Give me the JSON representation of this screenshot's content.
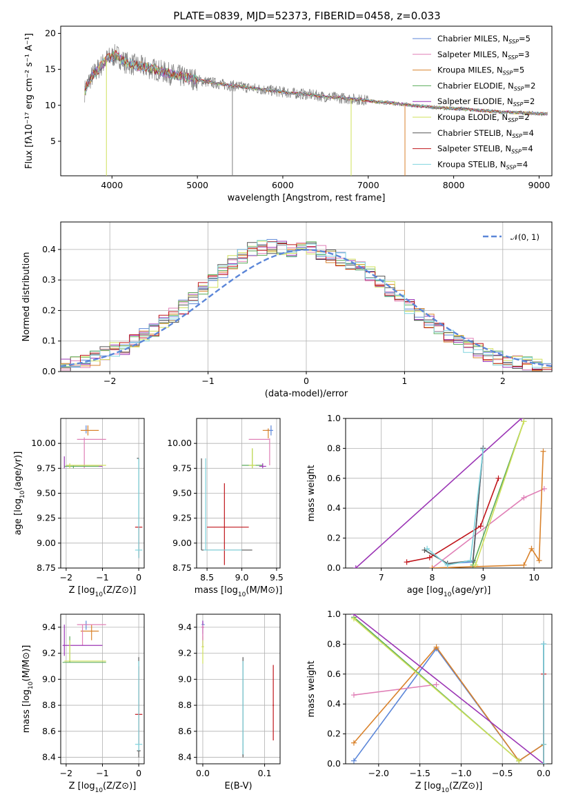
{
  "figure": {
    "title": "PLATE=0839, MJD=52373, FIBERID=0458, z=0.033"
  },
  "chart_data": [
    {
      "id": "spectrum",
      "type": "line",
      "xlabel": "wavelength [Angstrom, rest frame]",
      "ylabel": "Flux [fλ10⁻¹⁷ erg cm⁻² s⁻¹ A⁻¹]",
      "xlim": [
        3400,
        9150
      ],
      "ylim": [
        0.2,
        21
      ],
      "xticks": [
        4000,
        5000,
        6000,
        7000,
        8000,
        9000
      ],
      "yticks": [
        5,
        10,
        15,
        20
      ],
      "grid": false,
      "legend_position": "top-right",
      "series": [
        {
          "name": "Chabrier MILES, N_SSP=5",
          "color": "#5b86d8"
        },
        {
          "name": "Salpeter MILES, N_SSP=3",
          "color": "#e07fb6"
        },
        {
          "name": "Kroupa MILES, N_SSP=5",
          "color": "#d9822b"
        },
        {
          "name": "Chabrier ELODIE, N_SSP=2",
          "color": "#5aab5a"
        },
        {
          "name": "Salpeter ELODIE, N_SSP=2",
          "color": "#9b35b5"
        },
        {
          "name": "Kroupa ELODIE, N_SSP=2",
          "color": "#cfe05a"
        },
        {
          "name": "Chabrier STELIB, N_SSP=4",
          "color": "#555555"
        },
        {
          "name": "Salpeter STELIB, N_SSP=4",
          "color": "#c0141a"
        },
        {
          "name": "Kroupa STELIB, N_SSP=4",
          "color": "#7fd4de"
        }
      ],
      "data_series": {
        "x": [
          3680,
          3750,
          3850,
          3950,
          4050,
          4150,
          4300,
          4500,
          4700,
          4900,
          5100,
          5300,
          5500,
          5700,
          5900,
          6100,
          6300,
          6500,
          6700,
          6900,
          7100,
          7300,
          7500,
          7700,
          7900,
          8100,
          8300,
          8500,
          8700,
          8900,
          9100
        ],
        "y": [
          12.0,
          13.8,
          15.2,
          16.5,
          17.0,
          16.0,
          15.5,
          15.0,
          14.3,
          13.8,
          13.3,
          12.9,
          12.6,
          12.3,
          12.0,
          11.7,
          11.5,
          11.2,
          11.0,
          10.8,
          10.5,
          10.3,
          10.0,
          9.8,
          9.6,
          9.5,
          9.3,
          9.1,
          9.0,
          8.9,
          8.8
        ]
      },
      "legend_labels": [
        {
          "base": "Chabrier MILES, N",
          "sub": "SSP",
          "tail": "=5"
        },
        {
          "base": "Salpeter MILES, N",
          "sub": "SSP",
          "tail": "=3"
        },
        {
          "base": "Kroupa MILES, N",
          "sub": "SSP",
          "tail": "=5"
        },
        {
          "base": "Chabrier ELODIE, N",
          "sub": "SSP",
          "tail": "=2"
        },
        {
          "base": "Salpeter ELODIE, N",
          "sub": "SSP",
          "tail": "=2"
        },
        {
          "base": "Kroupa ELODIE, N",
          "sub": "SSP",
          "tail": "=2"
        },
        {
          "base": "Chabrier STELIB, N",
          "sub": "SSP",
          "tail": "=4"
        },
        {
          "base": "Salpeter STELIB, N",
          "sub": "SSP",
          "tail": "=4"
        },
        {
          "base": "Kroupa STELIB, N",
          "sub": "SSP",
          "tail": "=4"
        }
      ]
    },
    {
      "id": "residuals",
      "type": "line",
      "xlabel": "(data-model)/error",
      "ylabel": "Normed distribution",
      "xlim": [
        -2.5,
        2.5
      ],
      "ylim": [
        0,
        0.49
      ],
      "xticks": [
        -2,
        -1,
        0,
        1,
        2
      ],
      "yticks": [
        0.0,
        0.1,
        0.2,
        0.3,
        0.4
      ],
      "grid": true,
      "legend_position": "top-right",
      "legend": "𝒩(0, 1)",
      "gaussian_color": "#5b86d8",
      "histogram_bin_centers": [
        -2.45,
        -2.35,
        -2.25,
        -2.15,
        -2.05,
        -1.95,
        -1.85,
        -1.75,
        -1.65,
        -1.55,
        -1.45,
        -1.35,
        -1.25,
        -1.15,
        -1.05,
        -0.95,
        -0.85,
        -0.75,
        -0.65,
        -0.55,
        -0.45,
        -0.35,
        -0.25,
        -0.15,
        -0.05,
        0.05,
        0.15,
        0.25,
        0.35,
        0.45,
        0.55,
        0.65,
        0.75,
        0.85,
        0.95,
        1.05,
        1.15,
        1.25,
        1.35,
        1.45,
        1.55,
        1.65,
        1.75,
        1.85,
        1.95,
        2.05,
        2.15,
        2.25,
        2.35,
        2.45
      ],
      "histogram_density": [
        0.02,
        0.025,
        0.035,
        0.045,
        0.06,
        0.07,
        0.08,
        0.1,
        0.12,
        0.14,
        0.16,
        0.185,
        0.21,
        0.24,
        0.27,
        0.3,
        0.33,
        0.36,
        0.38,
        0.4,
        0.405,
        0.41,
        0.405,
        0.4,
        0.41,
        0.405,
        0.39,
        0.38,
        0.37,
        0.355,
        0.34,
        0.32,
        0.295,
        0.27,
        0.245,
        0.215,
        0.19,
        0.165,
        0.14,
        0.12,
        0.1,
        0.085,
        0.07,
        0.055,
        0.045,
        0.035,
        0.03,
        0.025,
        0.02,
        0.015
      ]
    },
    {
      "id": "z-age",
      "type": "scatter",
      "xlabel": "Z [log10(Z/Z⊙)]",
      "ylabel": "age  [log10(age/yr)]",
      "xlim": [
        -2.15,
        0.15
      ],
      "ylim": [
        8.75,
        10.25
      ],
      "xticks": [
        -2,
        -1,
        0
      ],
      "yticks": [
        8.75,
        9.0,
        9.25,
        9.5,
        9.75,
        10.0
      ],
      "ytick_labels": [
        "8.75",
        "9.00",
        "9.25",
        "9.50",
        "9.75",
        "10.00"
      ],
      "grid": true
    },
    {
      "id": "mass-age",
      "type": "scatter",
      "xlabel": "mass [log10(M/M⊙)]",
      "xlim": [
        8.35,
        9.55
      ],
      "ylim": [
        8.75,
        10.25
      ],
      "xticks": [
        8.5,
        9.0,
        9.5
      ],
      "yticks": [
        8.75,
        9.0,
        9.25,
        9.5,
        9.75,
        10.0
      ],
      "ytick_labels": [
        "8.75",
        "9.00",
        "9.25",
        "9.50",
        "9.75",
        "10.00"
      ],
      "grid": true
    },
    {
      "id": "age-weight",
      "type": "line",
      "xlabel": "age  [log10(age/yr)]",
      "ylabel": "mass weight",
      "xlim": [
        6.3,
        10.35
      ],
      "ylim": [
        0,
        1
      ],
      "xticks": [
        7,
        8,
        9,
        10
      ],
      "yticks": [
        0.0,
        0.2,
        0.4,
        0.6,
        0.8,
        1.0
      ],
      "grid": true,
      "series": [
        {
          "name": "Chabrier MILES",
          "color": "#5b86d8",
          "x": [
            8.3,
            8.8,
            9.0
          ],
          "y": [
            0.03,
            0.04,
            0.8
          ]
        },
        {
          "name": "Salpeter MILES",
          "color": "#e07fb6",
          "x": [
            8.0,
            9.8,
            10.2
          ],
          "y": [
            0.0,
            0.47,
            0.53
          ]
        },
        {
          "name": "Kroupa MILES",
          "color": "#d9822b",
          "x": [
            8.0,
            9.8,
            9.95,
            10.1,
            10.18
          ],
          "y": [
            0.0,
            0.02,
            0.13,
            0.05,
            0.78
          ]
        },
        {
          "name": "Chabrier ELODIE",
          "color": "#5aab5a",
          "x": [
            8.8,
            9.8
          ],
          "y": [
            0.02,
            0.98
          ]
        },
        {
          "name": "Salpeter ELODIE",
          "color": "#9b35b5",
          "x": [
            6.5,
            9.75
          ],
          "y": [
            0.0,
            1.0
          ]
        },
        {
          "name": "Kroupa ELODIE",
          "color": "#cfe05a",
          "x": [
            8.85,
            9.8
          ],
          "y": [
            0.02,
            0.98
          ]
        },
        {
          "name": "Chabrier STELIB",
          "color": "#555555",
          "x": [
            7.85,
            8.3,
            8.8,
            9.0
          ],
          "y": [
            0.12,
            0.03,
            0.05,
            0.8
          ]
        },
        {
          "name": "Salpeter STELIB",
          "color": "#c0141a",
          "x": [
            7.5,
            7.95,
            8.95,
            9.3
          ],
          "y": [
            0.04,
            0.07,
            0.28,
            0.6
          ]
        },
        {
          "name": "Kroupa STELIB",
          "color": "#7fd4de",
          "x": [
            7.9,
            8.3,
            8.75,
            9.0
          ],
          "y": [
            0.13,
            0.02,
            0.05,
            0.79
          ]
        }
      ]
    },
    {
      "id": "z-mass",
      "type": "scatter",
      "xlabel": "Z [log10(Z/Z⊙)]",
      "ylabel": "mass [log10(M/M⊙)]",
      "xlim": [
        -2.15,
        0.15
      ],
      "ylim": [
        8.35,
        9.5
      ],
      "xticks": [
        -2,
        -1,
        0
      ],
      "yticks": [
        8.4,
        8.6,
        8.8,
        9.0,
        9.2,
        9.4
      ],
      "grid": true
    },
    {
      "id": "ebv-mass",
      "type": "scatter",
      "xlabel": "E(B-V)",
      "xlim": [
        -0.01,
        0.125
      ],
      "ylim": [
        8.35,
        9.5
      ],
      "xticks": [
        0.0,
        0.1
      ],
      "yticks": [
        8.4,
        8.6,
        8.8,
        9.0,
        9.2,
        9.4
      ],
      "grid": true
    },
    {
      "id": "z-weight",
      "type": "line",
      "xlabel": "Z [log10(Z/Z⊙)]",
      "ylabel": "mass weight",
      "xlim": [
        -2.4,
        0.1
      ],
      "ylim": [
        0,
        1
      ],
      "xticks": [
        -2.0,
        -1.5,
        -1.0,
        -0.5,
        0.0
      ],
      "yticks": [
        0.0,
        0.2,
        0.4,
        0.6,
        0.8,
        1.0
      ],
      "grid": true,
      "series": [
        {
          "name": "Chabrier MILES",
          "color": "#5b86d8",
          "x": [
            -2.3,
            -1.3,
            -0.3,
            0.0,
            0.0
          ],
          "y": [
            0.02,
            0.77,
            0.02,
            0.13,
            0.8
          ]
        },
        {
          "name": "Salpeter MILES",
          "color": "#e07fb6",
          "x": [
            -2.3,
            -1.3
          ],
          "y": [
            0.46,
            0.53
          ]
        },
        {
          "name": "Kroupa MILES",
          "color": "#d9822b",
          "x": [
            -2.3,
            -1.3,
            -0.3,
            0.0
          ],
          "y": [
            0.14,
            0.78,
            0.02,
            0.13
          ]
        },
        {
          "name": "Chabrier ELODIE",
          "color": "#5aab5a",
          "x": [
            -2.3,
            -0.3
          ],
          "y": [
            0.98,
            0.02
          ]
        },
        {
          "name": "Salpeter ELODIE",
          "color": "#9b35b5",
          "x": [
            -2.3,
            0.0
          ],
          "y": [
            1.0,
            0.0
          ]
        },
        {
          "name": "Kroupa ELODIE",
          "color": "#cfe05a",
          "x": [
            -2.3,
            -0.3
          ],
          "y": [
            0.97,
            0.02
          ]
        },
        {
          "name": "Chabrier STELIB",
          "color": "#555555",
          "x": [
            0.0,
            0.0
          ],
          "y": [
            0.0,
            0.8
          ]
        },
        {
          "name": "Salpeter STELIB",
          "color": "#c0141a",
          "x": [
            0.0,
            0.0
          ],
          "y": [
            0.0,
            0.6
          ]
        },
        {
          "name": "Kroupa STELIB",
          "color": "#7fd4de",
          "x": [
            0.0,
            0.0,
            0.0
          ],
          "y": [
            0.0,
            0.13,
            0.8
          ]
        }
      ]
    }
  ]
}
